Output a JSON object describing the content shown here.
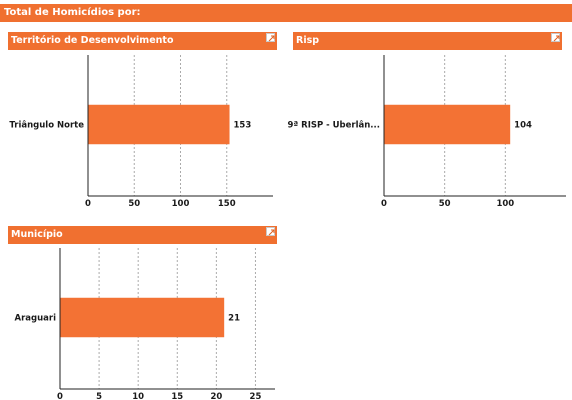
{
  "header": {
    "title": "Total de Homicídios por:"
  },
  "icons": {
    "expand": "expand-icon"
  },
  "colors": {
    "accent": "#f07030",
    "bar": "#f37234",
    "grid": "#aaaaaa"
  },
  "chart_data": [
    {
      "type": "bar",
      "orientation": "horizontal",
      "title": "Território de Desenvolvimento",
      "categories": [
        "Triângulo Norte"
      ],
      "values": [
        153
      ],
      "xlim": [
        0,
        200
      ],
      "ticks": [
        0,
        50,
        100,
        150
      ],
      "grid": true
    },
    {
      "type": "bar",
      "orientation": "horizontal",
      "title": "Risp",
      "categories": [
        "9ª RISP - Uberlân..."
      ],
      "values": [
        104
      ],
      "xlim": [
        0,
        150
      ],
      "ticks": [
        0,
        50,
        100
      ],
      "grid": true
    },
    {
      "type": "bar",
      "orientation": "horizontal",
      "title": "Município",
      "categories": [
        "Araguari"
      ],
      "values": [
        21
      ],
      "xlim": [
        0,
        27.5
      ],
      "ticks": [
        0,
        5,
        10,
        15,
        20,
        25
      ],
      "grid": true
    }
  ]
}
